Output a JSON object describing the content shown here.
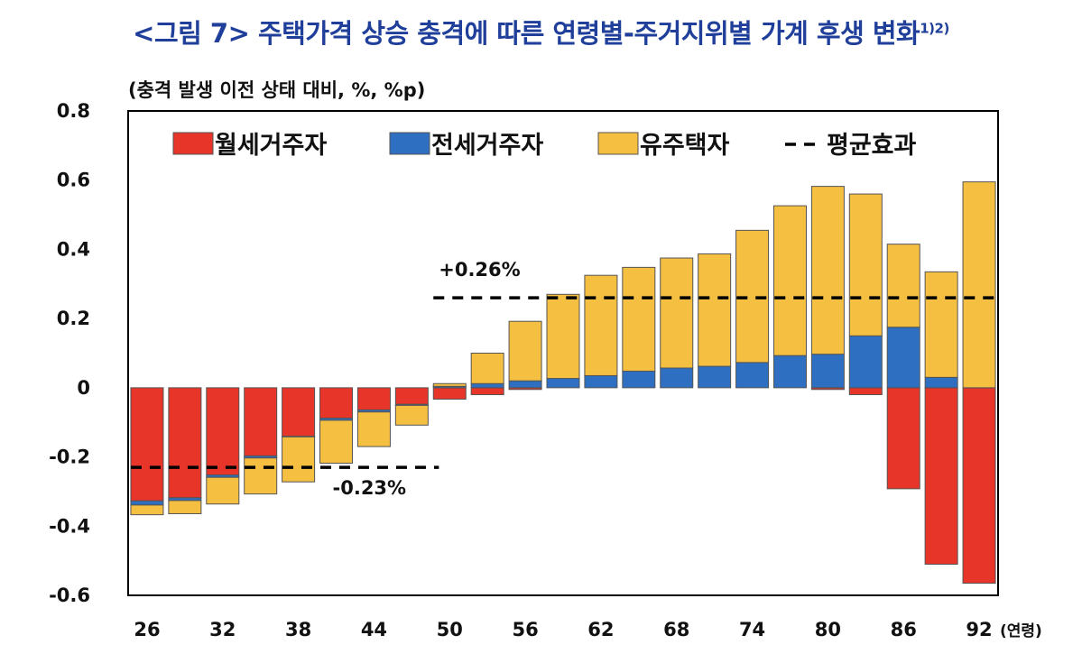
{
  "title": "<그림 7> 주택가격 상승 충격에 따른 연령별-주거지위별 가계 후생 변화",
  "title_note": "1)2)",
  "colors": {
    "monthly": "#e8352a",
    "jeonse": "#2f6fc1",
    "owner": "#f5bf42",
    "average": "#000000"
  },
  "chart_data": {
    "type": "bar",
    "stacked": true,
    "ylabel": "(충격 발생 이전 상태 대비, %, %p)",
    "xlabel": "(연령)",
    "ylim": [
      -0.6,
      0.8
    ],
    "yticks": [
      "0.8",
      "0.6",
      "0.4",
      "0.2",
      "0",
      "-0.2",
      "-0.4",
      "-0.6"
    ],
    "ytick_values": [
      0.8,
      0.6,
      0.4,
      0.2,
      0,
      -0.2,
      -0.4,
      -0.6
    ],
    "x_tick_labels": [
      "26",
      "32",
      "38",
      "44",
      "50",
      "56",
      "62",
      "68",
      "74",
      "80",
      "86",
      "92"
    ],
    "x_tick_positions": [
      26,
      32,
      38,
      44,
      50,
      56,
      62,
      68,
      74,
      80,
      86,
      92
    ],
    "x": [
      26,
      29,
      32,
      35,
      38,
      41,
      44,
      47,
      50,
      53,
      56,
      59,
      62,
      65,
      68,
      71,
      74,
      77,
      80,
      83,
      86,
      89,
      92
    ],
    "legend": [
      "월세거주자",
      "전세거주자",
      "유주택자",
      "평균효과"
    ],
    "series": [
      {
        "name": "월세거주자",
        "values": [
          -0.327,
          -0.318,
          -0.252,
          -0.197,
          -0.14,
          -0.088,
          -0.064,
          -0.048,
          -0.033,
          -0.02,
          -0.005,
          0,
          0,
          0,
          0,
          0,
          0,
          0,
          -0.005,
          -0.02,
          -0.292,
          -0.51,
          -0.565
        ]
      },
      {
        "name": "전세거주자",
        "values": [
          -0.012,
          -0.008,
          -0.007,
          -0.006,
          -0.002,
          -0.006,
          -0.006,
          -0.003,
          0.004,
          0.012,
          0.02,
          0.027,
          0.035,
          0.048,
          0.057,
          0.062,
          0.073,
          0.093,
          0.097,
          0.15,
          0.175,
          0.03,
          0
        ]
      },
      {
        "name": "유주택자",
        "values": [
          -0.028,
          -0.038,
          -0.077,
          -0.104,
          -0.13,
          -0.124,
          -0.1,
          -0.057,
          0.008,
          0.088,
          0.172,
          0.243,
          0.29,
          0.3,
          0.318,
          0.325,
          0.382,
          0.433,
          0.485,
          0.41,
          0.24,
          0.305,
          0.595
        ]
      }
    ],
    "average_effects": [
      {
        "label": "-0.23%",
        "value": -0.23,
        "x_range": [
          26,
          47
        ]
      },
      {
        "label": "+0.26%",
        "value": 0.26,
        "x_range": [
          50,
          92
        ]
      }
    ],
    "grid": false,
    "legend_position": "top-inside"
  }
}
